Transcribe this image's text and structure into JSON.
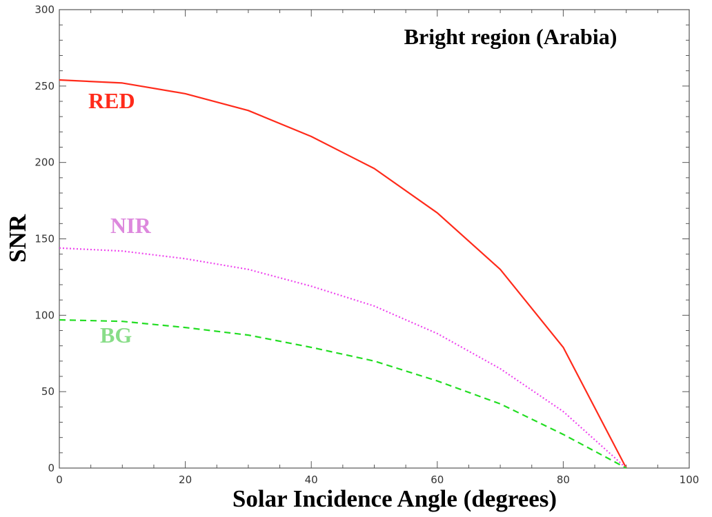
{
  "chart_data": {
    "type": "line",
    "title": "Bright region (Arabia)",
    "xlabel": "Solar Incidence Angle (degrees)",
    "ylabel": "SNR",
    "xlim": [
      0,
      100
    ],
    "ylim": [
      0,
      300
    ],
    "xticks": [
      0,
      20,
      40,
      60,
      80,
      100
    ],
    "yticks": [
      0,
      50,
      100,
      150,
      200,
      250,
      300
    ],
    "grid": false,
    "series": [
      {
        "name": "RED",
        "color": "#ff2a1a",
        "style": "solid",
        "x": [
          0,
          10,
          20,
          30,
          40,
          50,
          60,
          70,
          80,
          90
        ],
        "values": [
          254,
          252,
          245,
          234,
          217,
          196,
          167,
          130,
          79,
          0
        ]
      },
      {
        "name": "NIR",
        "color": "#ee44ee",
        "label_color": "#dd88dd",
        "style": "dotted",
        "x": [
          0,
          10,
          20,
          30,
          40,
          50,
          60,
          70,
          80,
          90
        ],
        "values": [
          144,
          142,
          137,
          130,
          119,
          106,
          88,
          65,
          37,
          0
        ]
      },
      {
        "name": "BG",
        "color": "#22dd22",
        "label_color": "#88dd88",
        "style": "dashed",
        "x": [
          0,
          10,
          20,
          30,
          40,
          50,
          60,
          70,
          80,
          90
        ],
        "values": [
          97,
          96,
          92,
          87,
          79,
          70,
          57,
          42,
          22,
          0
        ]
      }
    ]
  }
}
